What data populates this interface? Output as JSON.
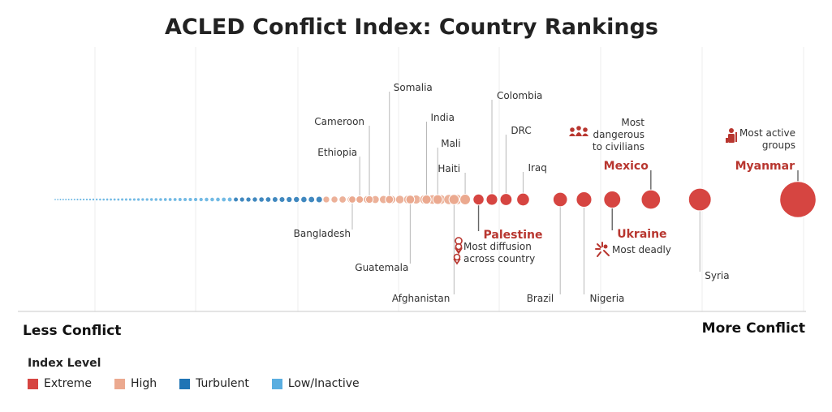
{
  "chart_data": {
    "type": "scatter",
    "title": "ACLED Conflict Index: Country Rankings",
    "xlabel_left": "Less Conflict",
    "xlabel_right": "More Conflict",
    "legend_title": "Index Level",
    "legend": [
      {
        "label": "Extreme",
        "color": "#d64541"
      },
      {
        "label": "High",
        "color": "#eba98f"
      },
      {
        "label": "Turbulent",
        "color": "#1f74b5"
      },
      {
        "label": "Low/Inactive",
        "color": "#5aaee0"
      }
    ],
    "grid": true,
    "labeled_countries": [
      {
        "name": "Bangladesh",
        "rank_pct": 0.4,
        "level": "High",
        "side": "below",
        "highlight": false
      },
      {
        "name": "Ethiopia",
        "rank_pct": 0.41,
        "level": "High",
        "side": "above",
        "highlight": false
      },
      {
        "name": "Cameroon",
        "rank_pct": 0.423,
        "level": "High",
        "side": "above",
        "highlight": false
      },
      {
        "name": "Somalia",
        "rank_pct": 0.45,
        "level": "High",
        "side": "above",
        "highlight": false
      },
      {
        "name": "Guatemala",
        "rank_pct": 0.478,
        "level": "High",
        "side": "below",
        "highlight": false
      },
      {
        "name": "India",
        "rank_pct": 0.5,
        "level": "High",
        "side": "above",
        "highlight": false
      },
      {
        "name": "Mali",
        "rank_pct": 0.515,
        "level": "High",
        "side": "above",
        "highlight": false
      },
      {
        "name": "Afghanistan",
        "rank_pct": 0.537,
        "level": "High",
        "side": "below",
        "highlight": false
      },
      {
        "name": "Haiti",
        "rank_pct": 0.552,
        "level": "High",
        "side": "above",
        "highlight": false
      },
      {
        "name": "Palestine",
        "rank_pct": 0.57,
        "level": "Extreme",
        "side": "below",
        "highlight": true,
        "note": "Most diffusion across country",
        "note_icon": "map-pin-icon"
      },
      {
        "name": "Colombia",
        "rank_pct": 0.588,
        "level": "Extreme",
        "side": "above",
        "highlight": false
      },
      {
        "name": "DRC",
        "rank_pct": 0.607,
        "level": "Extreme",
        "side": "above",
        "highlight": false
      },
      {
        "name": "Iraq",
        "rank_pct": 0.63,
        "level": "Extreme",
        "side": "above",
        "highlight": false
      },
      {
        "name": "Brazil",
        "rank_pct": 0.68,
        "level": "Extreme",
        "side": "below",
        "highlight": false
      },
      {
        "name": "Nigeria",
        "rank_pct": 0.712,
        "level": "Extreme",
        "side": "below",
        "highlight": false
      },
      {
        "name": "Ukraine",
        "rank_pct": 0.75,
        "level": "Extreme",
        "side": "below",
        "highlight": true,
        "note": "Most deadly",
        "note_icon": "explosion-icon"
      },
      {
        "name": "Mexico",
        "rank_pct": 0.802,
        "level": "Extreme",
        "side": "above",
        "highlight": true,
        "note": "Most dangerous to civilians",
        "note_icon": "people-group-icon"
      },
      {
        "name": "Syria",
        "rank_pct": 0.868,
        "level": "Extreme",
        "side": "below",
        "highlight": false
      },
      {
        "name": "Myanmar",
        "rank_pct": 1.0,
        "level": "Extreme",
        "side": "above",
        "highlight": true,
        "note": "Most active groups",
        "note_icon": "armed-group-icon"
      }
    ]
  }
}
